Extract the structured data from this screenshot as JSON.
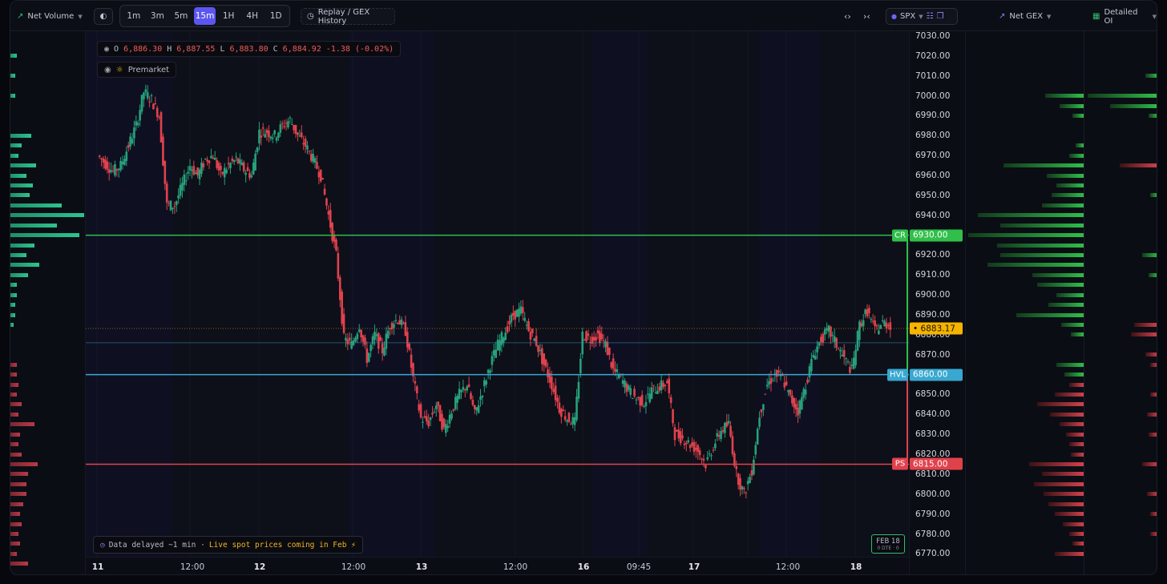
{
  "toolbar": {
    "net_volume_label": "Net Volume",
    "timeframes": [
      "1m",
      "3m",
      "5m",
      "15m",
      "1H",
      "4H",
      "1D"
    ],
    "active_timeframe": "15m",
    "replay_label": "Replay / GEX History",
    "symbol": "SPX",
    "net_gex_label": "Net GEX",
    "detailed_oi_label": "Detailed OI"
  },
  "colors": {
    "up": "#26a17b",
    "down": "#e0424c",
    "call_resistance": "#2fbf4a",
    "hvl": "#38a8d0",
    "put_support": "#e0424c",
    "spot": "#f4b400",
    "accent": "#5b56f0"
  },
  "ohlc": {
    "o_key": "O",
    "o": "6,886.30",
    "h_key": "H",
    "h": "6,887.55",
    "l_key": "L",
    "l": "6,883.80",
    "c_key": "C",
    "c": "6,884.92",
    "change": "-1.38 (-0.02%)"
  },
  "premarket_label": "Premarket",
  "notice": {
    "delayed": "Data delayed ~1 min ·",
    "live": "Live spot prices coming in Feb ⚡"
  },
  "date_badge": {
    "date": "FEB 18",
    "dte": "0 DTE · 0"
  },
  "time_axis": [
    "11",
    "12:00",
    "12",
    "12:00",
    "13",
    "12:00",
    "16",
    "09:45",
    "17",
    "12:00",
    "18"
  ],
  "price_axis": [
    "7030.00",
    "7020.00",
    "7010.00",
    "7000.00",
    "6990.00",
    "6980.00",
    "6970.00",
    "6960.00",
    "6950.00",
    "6940.00",
    "6930.00",
    "6920.00",
    "6910.00",
    "6900.00",
    "6890.00",
    "6880.00",
    "6870.00",
    "6860.00",
    "6850.00",
    "6840.00",
    "6830.00",
    "6820.00",
    "6810.00",
    "6800.00",
    "6790.00",
    "6780.00",
    "6770.00"
  ],
  "levels": {
    "call_resistance": {
      "tag": "CR",
      "price": "6930.00"
    },
    "hvl": {
      "tag": "HVL",
      "price": "6860.00"
    },
    "put_support": {
      "tag": "PS",
      "price": "6815.00"
    },
    "spot": {
      "price": "6883.17"
    }
  },
  "chart_data": {
    "type": "candlestick",
    "interval": "15m",
    "y_range": [
      6770,
      7030
    ],
    "x_labels": [
      "11",
      "12:00",
      "12",
      "12:00",
      "13",
      "12:00",
      "16",
      "09:45",
      "17",
      "12:00",
      "18"
    ],
    "close_path": [
      6970,
      6966,
      6962,
      6965,
      6975,
      6985,
      7002,
      6998,
      6990,
      6945,
      6945,
      6955,
      6965,
      6960,
      6968,
      6970,
      6960,
      6965,
      6968,
      6963,
      6960,
      6982,
      6982,
      6980,
      6985,
      6988,
      6980,
      6975,
      6968,
      6960,
      6940,
      6920,
      6878,
      6875,
      6885,
      6868,
      6880,
      6872,
      6885,
      6888,
      6882,
      6858,
      6838,
      6836,
      6845,
      6832,
      6842,
      6850,
      6855,
      6840,
      6852,
      6865,
      6875,
      6882,
      6890,
      6892,
      6882,
      6876,
      6865,
      6855,
      6843,
      6838,
      6836,
      6880,
      6878,
      6880,
      6875,
      6862,
      6858,
      6852,
      6848,
      6846,
      6852,
      6854,
      6856,
      6830,
      6828,
      6825,
      6822,
      6815,
      6824,
      6832,
      6835,
      6810,
      6800,
      6812,
      6840,
      6855,
      6860,
      6858,
      6848,
      6842,
      6855,
      6870,
      6878,
      6882,
      6875,
      6868,
      6862,
      6885,
      6892,
      6882,
      6886,
      6885
    ]
  },
  "net_gex_bars": [
    {
      "price": 7000,
      "w": 48,
      "c": "g"
    },
    {
      "price": 6995,
      "w": 30,
      "c": "g"
    },
    {
      "price": 6990,
      "w": 14,
      "c": "g"
    },
    {
      "price": 6975,
      "w": 10,
      "c": "g"
    },
    {
      "price": 6970,
      "w": 18,
      "c": "g"
    },
    {
      "price": 6965,
      "w": 100,
      "c": "g"
    },
    {
      "price": 6960,
      "w": 46,
      "c": "g"
    },
    {
      "price": 6955,
      "w": 34,
      "c": "g"
    },
    {
      "price": 6950,
      "w": 40,
      "c": "g"
    },
    {
      "price": 6945,
      "w": 52,
      "c": "g"
    },
    {
      "price": 6940,
      "w": 132,
      "c": "g"
    },
    {
      "price": 6935,
      "w": 104,
      "c": "g"
    },
    {
      "price": 6930,
      "w": 144,
      "c": "g"
    },
    {
      "price": 6925,
      "w": 108,
      "c": "g"
    },
    {
      "price": 6920,
      "w": 104,
      "c": "g"
    },
    {
      "price": 6915,
      "w": 120,
      "c": "g"
    },
    {
      "price": 6910,
      "w": 64,
      "c": "g"
    },
    {
      "price": 6905,
      "w": 58,
      "c": "g"
    },
    {
      "price": 6900,
      "w": 34,
      "c": "g"
    },
    {
      "price": 6895,
      "w": 44,
      "c": "g"
    },
    {
      "price": 6890,
      "w": 84,
      "c": "g"
    },
    {
      "price": 6885,
      "w": 28,
      "c": "g"
    },
    {
      "price": 6880,
      "w": 16,
      "c": "g"
    },
    {
      "price": 6865,
      "w": 34,
      "c": "g"
    },
    {
      "price": 6860,
      "w": 24,
      "c": "g"
    },
    {
      "price": 6855,
      "w": 18,
      "c": "r"
    },
    {
      "price": 6850,
      "w": 36,
      "c": "r"
    },
    {
      "price": 6845,
      "w": 58,
      "c": "r"
    },
    {
      "price": 6840,
      "w": 42,
      "c": "r"
    },
    {
      "price": 6835,
      "w": 30,
      "c": "r"
    },
    {
      "price": 6830,
      "w": 22,
      "c": "r"
    },
    {
      "price": 6825,
      "w": 18,
      "c": "r"
    },
    {
      "price": 6820,
      "w": 16,
      "c": "r"
    },
    {
      "price": 6815,
      "w": 68,
      "c": "r"
    },
    {
      "price": 6810,
      "w": 52,
      "c": "r"
    },
    {
      "price": 6805,
      "w": 62,
      "c": "r"
    },
    {
      "price": 6800,
      "w": 50,
      "c": "r"
    },
    {
      "price": 6795,
      "w": 44,
      "c": "r"
    },
    {
      "price": 6790,
      "w": 36,
      "c": "r"
    },
    {
      "price": 6785,
      "w": 26,
      "c": "r"
    },
    {
      "price": 6780,
      "w": 18,
      "c": "r"
    },
    {
      "price": 6775,
      "w": 14,
      "c": "r"
    },
    {
      "price": 6770,
      "w": 36,
      "c": "r"
    }
  ],
  "detailed_oi_bars": [
    {
      "price": 7010,
      "w": 16,
      "c": "g"
    },
    {
      "price": 7000,
      "w": 88,
      "c": "g"
    },
    {
      "price": 6995,
      "w": 60,
      "c": "g"
    },
    {
      "price": 6990,
      "w": 12,
      "c": "g"
    },
    {
      "price": 6965,
      "w": 48,
      "c": "r"
    },
    {
      "price": 6950,
      "w": 10,
      "c": "g"
    },
    {
      "price": 6920,
      "w": 20,
      "c": "g"
    },
    {
      "price": 6910,
      "w": 12,
      "c": "g"
    },
    {
      "price": 6885,
      "w": 30,
      "c": "r"
    },
    {
      "price": 6880,
      "w": 34,
      "c": "r"
    },
    {
      "price": 6870,
      "w": 16,
      "c": "r"
    },
    {
      "price": 6865,
      "w": 10,
      "c": "r"
    },
    {
      "price": 6850,
      "w": 10,
      "c": "r"
    },
    {
      "price": 6840,
      "w": 14,
      "c": "r"
    },
    {
      "price": 6830,
      "w": 12,
      "c": "r"
    },
    {
      "price": 6815,
      "w": 20,
      "c": "r"
    },
    {
      "price": 6800,
      "w": 14,
      "c": "r"
    },
    {
      "price": 6790,
      "w": 10,
      "c": "r"
    },
    {
      "price": 6780,
      "w": 10,
      "c": "r"
    }
  ],
  "net_volume_bars": [
    {
      "price": 7020,
      "w": 8,
      "c": "g"
    },
    {
      "price": 7010,
      "w": 6,
      "c": "g"
    },
    {
      "price": 7000,
      "w": 6,
      "c": "g"
    },
    {
      "price": 6980,
      "w": 26,
      "c": "g"
    },
    {
      "price": 6975,
      "w": 14,
      "c": "g"
    },
    {
      "price": 6970,
      "w": 10,
      "c": "g"
    },
    {
      "price": 6965,
      "w": 32,
      "c": "g"
    },
    {
      "price": 6960,
      "w": 20,
      "c": "g"
    },
    {
      "price": 6955,
      "w": 28,
      "c": "g"
    },
    {
      "price": 6950,
      "w": 24,
      "c": "g"
    },
    {
      "price": 6945,
      "w": 64,
      "c": "g"
    },
    {
      "price": 6940,
      "w": 92,
      "c": "g"
    },
    {
      "price": 6935,
      "w": 58,
      "c": "g"
    },
    {
      "price": 6930,
      "w": 86,
      "c": "g"
    },
    {
      "price": 6925,
      "w": 30,
      "c": "g"
    },
    {
      "price": 6920,
      "w": 20,
      "c": "g"
    },
    {
      "price": 6915,
      "w": 36,
      "c": "g"
    },
    {
      "price": 6910,
      "w": 22,
      "c": "g"
    },
    {
      "price": 6905,
      "w": 8,
      "c": "g"
    },
    {
      "price": 6900,
      "w": 8,
      "c": "g"
    },
    {
      "price": 6895,
      "w": 6,
      "c": "g"
    },
    {
      "price": 6890,
      "w": 6,
      "c": "g"
    },
    {
      "price": 6885,
      "w": 4,
      "c": "g"
    },
    {
      "price": 6865,
      "w": 8,
      "c": "r"
    },
    {
      "price": 6860,
      "w": 8,
      "c": "r"
    },
    {
      "price": 6855,
      "w": 10,
      "c": "r"
    },
    {
      "price": 6850,
      "w": 8,
      "c": "r"
    },
    {
      "price": 6845,
      "w": 14,
      "c": "r"
    },
    {
      "price": 6840,
      "w": 10,
      "c": "r"
    },
    {
      "price": 6835,
      "w": 30,
      "c": "r"
    },
    {
      "price": 6830,
      "w": 12,
      "c": "r"
    },
    {
      "price": 6825,
      "w": 10,
      "c": "r"
    },
    {
      "price": 6820,
      "w": 14,
      "c": "r"
    },
    {
      "price": 6815,
      "w": 34,
      "c": "r"
    },
    {
      "price": 6810,
      "w": 22,
      "c": "r"
    },
    {
      "price": 6805,
      "w": 20,
      "c": "r"
    },
    {
      "price": 6800,
      "w": 20,
      "c": "r"
    },
    {
      "price": 6795,
      "w": 16,
      "c": "r"
    },
    {
      "price": 6790,
      "w": 12,
      "c": "r"
    },
    {
      "price": 6785,
      "w": 14,
      "c": "r"
    },
    {
      "price": 6780,
      "w": 10,
      "c": "r"
    },
    {
      "price": 6775,
      "w": 12,
      "c": "r"
    },
    {
      "price": 6770,
      "w": 8,
      "c": "r"
    },
    {
      "price": 6765,
      "w": 22,
      "c": "r"
    }
  ]
}
